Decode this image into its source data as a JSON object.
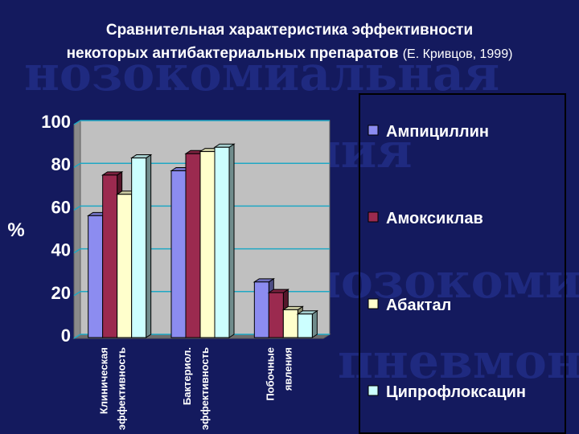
{
  "title": {
    "line1": "Сравнительная характеристика эффективности",
    "line2": "некоторых антибактериальных препаратов",
    "citation": "(Е. Кривцов, 1999)"
  },
  "background_text": [
    "нозокомиальная",
    "пневмония",
    "нозокомиальная",
    "пневмония"
  ],
  "chart_data": {
    "type": "bar",
    "title": "",
    "ylabel": "%",
    "xlabel": "",
    "ylim": [
      0,
      100
    ],
    "yticks": [
      0,
      20,
      40,
      60,
      80,
      100
    ],
    "grid": true,
    "legend_position": "right",
    "categories": [
      [
        "Клиническая",
        "эффективность"
      ],
      [
        "Бактериол.",
        "эффективность"
      ],
      [
        "Побочные",
        "явления"
      ]
    ],
    "series": [
      {
        "name": "Ампициллин",
        "color": "#8c8cf0",
        "values": [
          57,
          78,
          26
        ]
      },
      {
        "name": "Амоксиклав",
        "color": "#9b2a4f",
        "values": [
          76,
          86,
          21
        ]
      },
      {
        "name": "Абактал",
        "color": "#ffffcc",
        "values": [
          67,
          87,
          13
        ]
      },
      {
        "name": "Ципрофлоксацин",
        "color": "#ccffff",
        "values": [
          84,
          89,
          11
        ]
      }
    ]
  }
}
